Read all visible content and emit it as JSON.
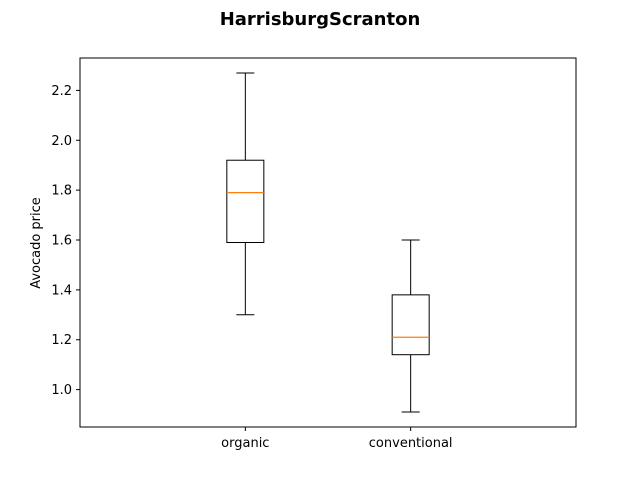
{
  "chart_data": {
    "type": "box",
    "title": "HarrisburgScranton",
    "xlabel": "",
    "ylabel": "Avocado price",
    "categories": [
      "organic",
      "conventional"
    ],
    "boxes": [
      {
        "category": "organic",
        "whisker_low": 1.3,
        "q1": 1.59,
        "median": 1.79,
        "q3": 1.92,
        "whisker_high": 2.27
      },
      {
        "category": "conventional",
        "whisker_low": 0.91,
        "q1": 1.14,
        "median": 1.21,
        "q3": 1.38,
        "whisker_high": 1.6
      }
    ],
    "ylim": [
      0.85,
      2.33
    ],
    "yticks": [
      "1.0",
      "1.2",
      "1.4",
      "1.6",
      "1.8",
      "2.0",
      "2.2"
    ],
    "grid": false,
    "colors": {
      "box": "#000000",
      "median": "#ff7f0e",
      "whisker": "#000000"
    }
  }
}
